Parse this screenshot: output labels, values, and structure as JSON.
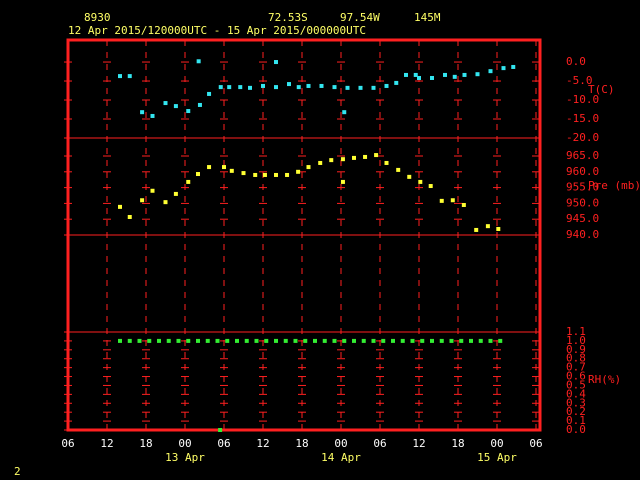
{
  "header": {
    "station": "8930",
    "lat": "72.53S",
    "lon": "97.54W",
    "elev": "145M",
    "range": "12 Apr 2015/120000UTC - 15 Apr 2015/000000UTC",
    "page": "2"
  },
  "x_axis": {
    "xlim": [
      6,
      78
    ],
    "xticks": [
      {
        "value": 6,
        "label": "06"
      },
      {
        "value": 12,
        "label": "12"
      },
      {
        "value": 18,
        "label": "18"
      },
      {
        "value": 24,
        "label": "00"
      },
      {
        "value": 30,
        "label": "06"
      },
      {
        "value": 36,
        "label": "12"
      },
      {
        "value": 42,
        "label": "18"
      },
      {
        "value": 48,
        "label": "00"
      },
      {
        "value": 54,
        "label": "06"
      },
      {
        "value": 60,
        "label": "12"
      },
      {
        "value": 66,
        "label": "18"
      },
      {
        "value": 72,
        "label": "00"
      },
      {
        "value": 78,
        "label": "06"
      }
    ],
    "date_labels": [
      {
        "value": 24,
        "label": "13 Apr"
      },
      {
        "value": 48,
        "label": "14 Apr"
      },
      {
        "value": 72,
        "label": "15 Apr"
      }
    ]
  },
  "chart_data": [
    {
      "type": "scatter",
      "y_label": "T(C)",
      "color": "#33e6f0",
      "ylim": [
        -20,
        5.8
      ],
      "yticks": [
        {
          "value": 0,
          "label": "0.0"
        },
        {
          "value": -5,
          "label": "-5.0"
        },
        {
          "value": -10,
          "label": "-10.0"
        },
        {
          "value": -15,
          "label": "-15.0"
        },
        {
          "value": -20,
          "label": "-20.0"
        }
      ],
      "x": [
        14,
        15.5,
        17.4,
        19,
        21,
        22.6,
        24.5,
        26.3,
        27.7,
        26.1,
        29.5,
        30.8,
        32.5,
        34,
        36,
        38,
        38,
        40,
        41.5,
        43,
        45,
        47,
        48.5,
        49,
        51,
        53,
        55,
        56.5,
        58,
        59.5,
        60,
        62,
        64,
        65.5,
        67,
        69,
        71,
        73,
        74.5
      ],
      "values": [
        -3.7,
        -3.7,
        -13.2,
        -14.2,
        -10.8,
        -11.6,
        -12.9,
        -11.3,
        -8.4,
        0.2,
        -6.6,
        -6.6,
        -6.6,
        -6.8,
        -6.3,
        -6.6,
        0,
        -5.8,
        -6.6,
        -6.3,
        -6.3,
        -6.6,
        -13.2,
        -6.8,
        -6.8,
        -6.8,
        -6.3,
        -5.5,
        -3.4,
        -3.4,
        -4.2,
        -4.2,
        -3.4,
        -3.9,
        -3.4,
        -3.2,
        -2.4,
        -1.6,
        -1.3
      ]
    },
    {
      "type": "scatter",
      "y_label": "Pre (mb)",
      "color": "#ffff33",
      "ylim": [
        940,
        970.7
      ],
      "yticks": [
        {
          "value": 965,
          "label": "965.0"
        },
        {
          "value": 960,
          "label": "960.0"
        },
        {
          "value": 955,
          "label": "955.0"
        },
        {
          "value": 950,
          "label": "950.0"
        },
        {
          "value": 945,
          "label": "945.0"
        },
        {
          "value": 940,
          "label": "940.0"
        }
      ],
      "x": [
        14,
        15.5,
        17.4,
        19,
        21,
        22.6,
        24.5,
        26,
        27.7,
        30,
        31.2,
        33,
        34.8,
        36.3,
        38,
        39.7,
        41.4,
        43,
        44.8,
        46.5,
        48.3,
        48.3,
        50,
        51.7,
        53.4,
        55,
        56.8,
        58.5,
        60.2,
        61.8,
        63.5,
        65.2,
        66.9,
        68.8,
        70.6,
        72.2
      ],
      "values": [
        948.9,
        945.7,
        951,
        954,
        950.4,
        953,
        956.8,
        959.3,
        961.5,
        961.5,
        960.3,
        959.6,
        959,
        959,
        959,
        959,
        960,
        961.5,
        962.8,
        963.7,
        956.8,
        964,
        964.4,
        964.7,
        965.3,
        962.8,
        960.6,
        958.4,
        956.8,
        955.5,
        950.8,
        951,
        949.5,
        941.6,
        942.8,
        941.9
      ]
    },
    {
      "type": "scatter",
      "y_label": "RH(%)",
      "color": "#33ee33",
      "ylim": [
        0,
        1.1
      ],
      "yticks": [
        1.1,
        {
          "value": 1,
          "label": "1.0"
        },
        0.9,
        0.8,
        0.7,
        0.6,
        0.5,
        0.4,
        0.3,
        0.2,
        0.1,
        {
          "value": 0,
          "label": "0.0"
        }
      ],
      "x": [
        14,
        15.5,
        17,
        18.5,
        20,
        21.5,
        23,
        24.5,
        26,
        27.5,
        29,
        30.5,
        32,
        33.5,
        35,
        36.5,
        38,
        39.5,
        41,
        42.5,
        44,
        45.5,
        47,
        48.5,
        50,
        51.5,
        53,
        54.5,
        56,
        57.5,
        59,
        60.5,
        62,
        63.5,
        65,
        66.5,
        68,
        69.5,
        71,
        72.5,
        29.4
      ],
      "values": [
        1,
        1,
        1,
        1,
        1,
        1,
        1,
        1,
        1,
        1,
        1,
        1,
        1,
        1,
        1,
        1,
        1,
        1,
        1,
        1,
        1,
        1,
        1,
        1,
        1,
        1,
        1,
        1,
        1,
        1,
        1,
        1,
        1,
        1,
        1,
        1,
        1,
        1,
        1,
        1,
        0
      ]
    }
  ]
}
